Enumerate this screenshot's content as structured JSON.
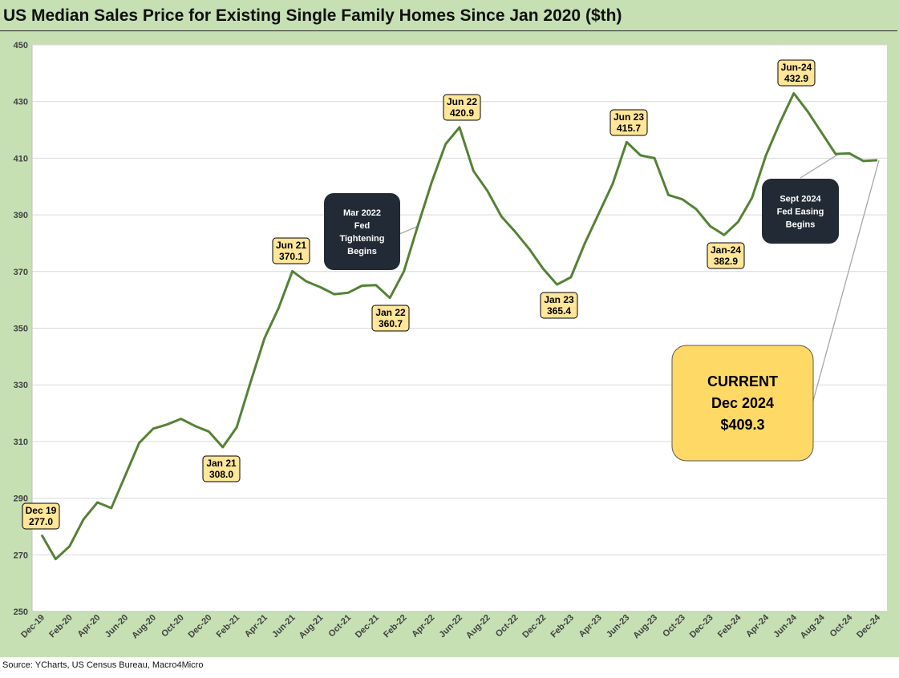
{
  "title": "US Median Sales Price for Existing Single Family Homes Since Jan 2020 ($th)",
  "source": "Source: YCharts, US Census Bureau, Macro4Micro",
  "colors": {
    "frame": "#c6e0b4",
    "line": "#548235",
    "grid": "#d9d9d9",
    "callout_fill": "#ffe699",
    "current_fill": "#ffd966",
    "event_fill": "#222a35",
    "leader": "#a6a6a6"
  },
  "chart_data": {
    "type": "line",
    "ylim": [
      250,
      450
    ],
    "yticks": [
      250,
      270,
      290,
      310,
      330,
      350,
      370,
      390,
      410,
      430,
      450
    ],
    "grid": "horizontal",
    "xtick_labels": [
      "Dec-19",
      "Feb-20",
      "Apr-20",
      "Jun-20",
      "Aug-20",
      "Oct-20",
      "Dec-20",
      "Feb-21",
      "Apr-21",
      "Jun-21",
      "Aug-21",
      "Oct-21",
      "Dec-21",
      "Feb-22",
      "Apr-22",
      "Jun-22",
      "Aug-22",
      "Oct-22",
      "Dec-22",
      "Feb-23",
      "Apr-23",
      "Jun-23",
      "Aug-23",
      "Oct-23",
      "Dec-23",
      "Feb-24",
      "Apr-24",
      "Jun-24",
      "Aug-24",
      "Oct-24",
      "Dec-24"
    ],
    "series": [
      {
        "values": [
          277.0,
          268.5,
          273.0,
          282.5,
          288.5,
          286.5,
          298.0,
          309.5,
          314.5,
          316.0,
          318.0,
          315.5,
          313.5,
          308.0,
          315.0,
          331.0,
          346.5,
          357.0,
          370.1,
          366.5,
          364.5,
          362.0,
          362.5,
          365.0,
          365.2,
          360.7,
          370.0,
          386.0,
          401.5,
          415.0,
          420.9,
          405.5,
          398.5,
          389.5,
          384.0,
          378.0,
          371.0,
          365.4,
          368.0,
          380.0,
          390.5,
          401.0,
          415.7,
          411.0,
          410.0,
          397.0,
          395.5,
          392.0,
          386.0,
          382.9,
          387.5,
          396.0,
          411.0,
          422.5,
          432.9,
          426.5,
          419.0,
          411.5,
          411.7,
          409.0,
          409.3
        ]
      }
    ],
    "annotations": {
      "points": [
        {
          "idx": 0,
          "label": "Dec 19",
          "value_text": "277.0"
        },
        {
          "idx": 13,
          "label": "Jan 21",
          "value_text": "308.0"
        },
        {
          "idx": 18,
          "label": "Jun 21",
          "value_text": "370.1"
        },
        {
          "idx": 25,
          "label": "Jan 22",
          "value_text": "360.7"
        },
        {
          "idx": 30,
          "label": "Jun 22",
          "value_text": "420.9"
        },
        {
          "idx": 37,
          "label": "Jan 23",
          "value_text": "365.4"
        },
        {
          "idx": 42,
          "label": "Jun 23",
          "value_text": "415.7"
        },
        {
          "idx": 49,
          "label": "Jan-24",
          "value_text": "382.9"
        },
        {
          "idx": 54,
          "label": "Jun-24",
          "value_text": "432.9"
        }
      ],
      "events": [
        {
          "lines": [
            "Mar 2022",
            "Fed",
            "Tightening",
            "Begins"
          ]
        },
        {
          "lines": [
            "Sept 2024",
            "Fed Easing",
            "Begins"
          ]
        }
      ],
      "current": {
        "lines": [
          "CURRENT",
          "Dec 2024",
          "$409.3"
        ]
      }
    }
  }
}
